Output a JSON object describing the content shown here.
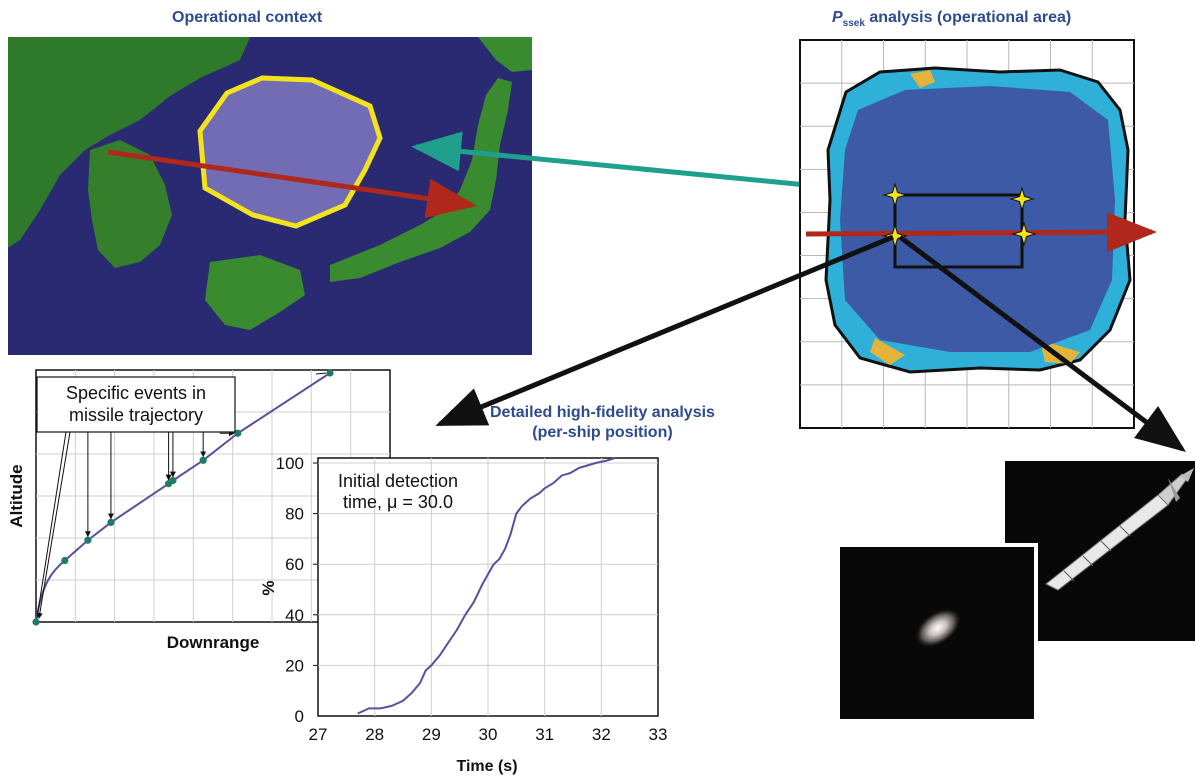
{
  "titles": {
    "operational_context": "Operational context",
    "pssek_p": "P",
    "pssek_sub": "ssek",
    "pssek_rest": " analysis (operational area)",
    "detailed_line1": "Detailed high-fidelity analysis",
    "detailed_line2": "(per-ship position)"
  },
  "trajectory_plot": {
    "callout_line1": "Specific events in",
    "callout_line2": "missile trajectory",
    "xlabel": "Downrange",
    "ylabel": "Altitude",
    "points": [
      [
        0,
        0
      ],
      [
        1,
        1
      ],
      [
        1.8,
        1.33
      ],
      [
        2.6,
        1.62
      ],
      [
        4.6,
        2.25
      ],
      [
        4.75,
        2.3
      ],
      [
        5.8,
        2.63
      ],
      [
        7,
        3.07
      ],
      [
        10.2,
        4.05
      ]
    ],
    "event_point_indices": [
      2,
      3,
      4,
      5,
      6,
      7
    ]
  },
  "chart_data": {
    "type": "line",
    "title": "",
    "annotation_line1": "Initial detection",
    "annotation_line2": "time, μ = 30.0",
    "xlabel": "Time (s)",
    "ylabel": "%",
    "xlim": [
      27,
      33
    ],
    "ylim": [
      0,
      100
    ],
    "xticks": [
      "27",
      "28",
      "29",
      "30",
      "31",
      "32",
      "33"
    ],
    "yticks": [
      "0",
      "20",
      "40",
      "60",
      "80",
      "100"
    ],
    "grid": true,
    "series": [
      {
        "x": [
          27.7,
          27.9,
          28.1,
          28.3,
          28.5,
          28.65,
          28.8,
          28.9,
          29.0,
          29.15,
          29.3,
          29.45,
          29.6,
          29.75,
          29.9,
          30.0,
          30.1,
          30.2,
          30.3,
          30.4,
          30.5,
          30.6,
          30.75,
          30.9,
          31.0,
          31.15,
          31.3,
          31.45,
          31.6,
          31.75,
          31.9,
          32.1,
          32.25
        ],
        "y": [
          1,
          3,
          3,
          4,
          6,
          9,
          13,
          18,
          20,
          24,
          29,
          34,
          40,
          45,
          52,
          56,
          60,
          62,
          66,
          72,
          80,
          83,
          86,
          88,
          90,
          92,
          95,
          96,
          98,
          99,
          100,
          101,
          102
        ]
      }
    ]
  },
  "colors": {
    "title_blue": "#2e4b8f",
    "ocean": "#2a2a72",
    "land_green": "#2f7a2a",
    "polygon_fill": "#7e78c0",
    "polygon_stroke": "#f2e31c",
    "trajectory_red": "#b0271c",
    "teal_arrow": "#1fa08c",
    "map_blue": "#3c5aa6",
    "map_cyan": "#2eb0d8",
    "line_purple": "#5a4f9f",
    "point_teal": "#1f7a6a"
  }
}
